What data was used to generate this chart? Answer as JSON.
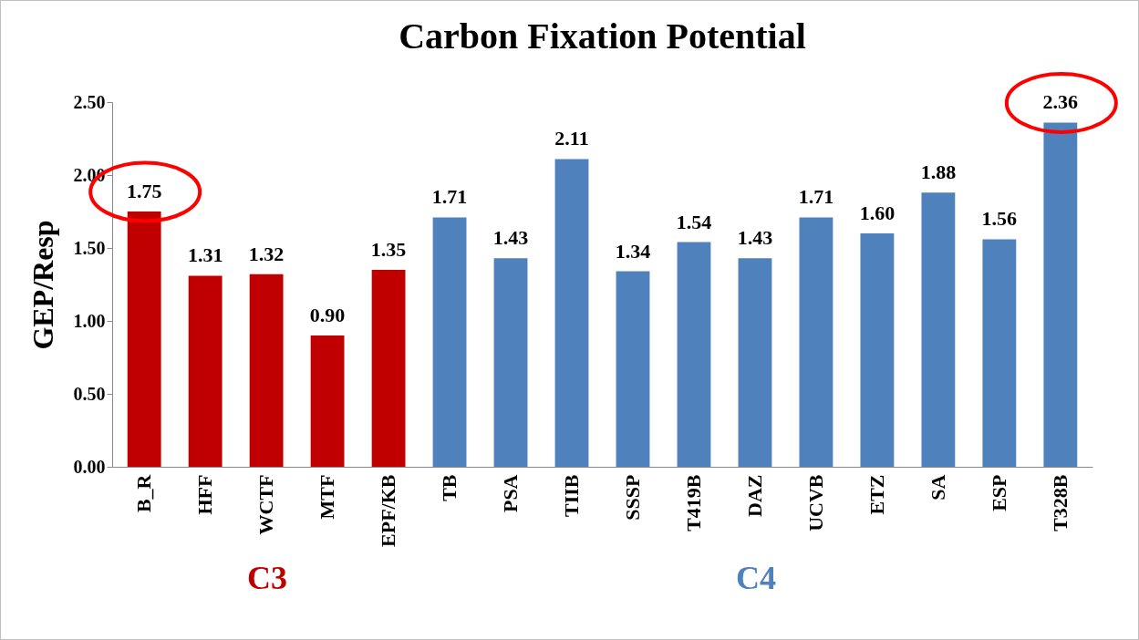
{
  "chart_data": {
    "type": "bar",
    "title": "Carbon Fixation Potential",
    "ylabel": "GEP/Resp",
    "categories": [
      "B_R",
      "HFF",
      "WCTF",
      "MTF",
      "EPF/KB",
      "TB",
      "PSA",
      "TIIB",
      "SSSP",
      "T419B",
      "DAZ",
      "UCVB",
      "ETZ",
      "SA",
      "ESP",
      "T328B"
    ],
    "values": [
      1.75,
      1.31,
      1.32,
      0.9,
      1.35,
      1.71,
      1.43,
      2.11,
      1.34,
      1.54,
      1.43,
      1.71,
      1.6,
      1.88,
      1.56,
      2.36
    ],
    "value_labels": [
      "1.75",
      "1.31",
      "1.32",
      "0.90",
      "1.35",
      "1.71",
      "1.43",
      "2.11",
      "1.34",
      "1.54",
      "1.43",
      "1.71",
      "1.60",
      "1.88",
      "1.56",
      "2.36"
    ],
    "colors": [
      "#c00000",
      "#c00000",
      "#c00000",
      "#c00000",
      "#c00000",
      "#4f81bd",
      "#4f81bd",
      "#4f81bd",
      "#4f81bd",
      "#4f81bd",
      "#4f81bd",
      "#4f81bd",
      "#4f81bd",
      "#4f81bd",
      "#4f81bd",
      "#4f81bd"
    ],
    "ylim": [
      0,
      2.5
    ],
    "yticks": [
      {
        "value": 0,
        "label": "0.00"
      },
      {
        "value": 0.5,
        "label": "0.50"
      },
      {
        "value": 1,
        "label": "1.00"
      },
      {
        "value": 1.5,
        "label": "1.50"
      },
      {
        "value": 2,
        "label": "2.00"
      },
      {
        "value": 2.5,
        "label": "2.50"
      }
    ],
    "grid": false,
    "annotations": [
      "C3",
      "C4"
    ]
  }
}
